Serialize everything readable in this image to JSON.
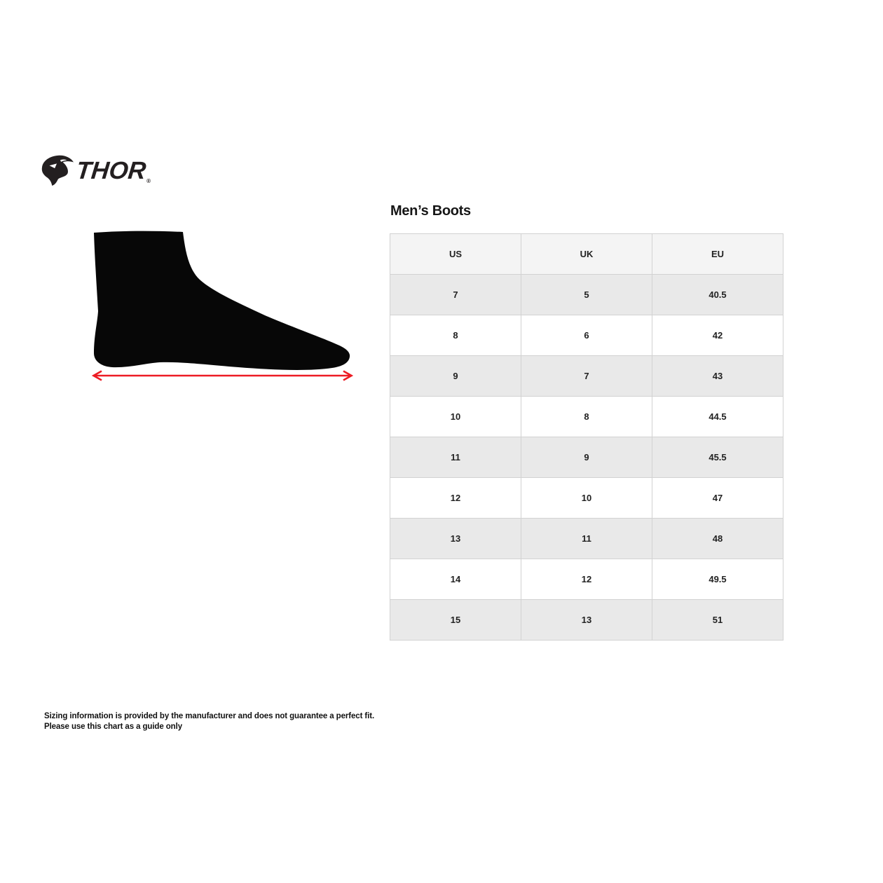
{
  "brand": {
    "name": "THOR",
    "registered_mark": "®"
  },
  "diagram": {
    "description": "foot side silhouette with length measurement arrow",
    "arrow_color": "#ed1c24"
  },
  "size_chart": {
    "title": "Men’s Boots",
    "columns": [
      "US",
      "UK",
      "EU"
    ],
    "rows": [
      [
        "7",
        "5",
        "40.5"
      ],
      [
        "8",
        "6",
        "42"
      ],
      [
        "9",
        "7",
        "43"
      ],
      [
        "10",
        "8",
        "44.5"
      ],
      [
        "11",
        "9",
        "45.5"
      ],
      [
        "12",
        "10",
        "47"
      ],
      [
        "13",
        "11",
        "48"
      ],
      [
        "14",
        "12",
        "49.5"
      ],
      [
        "15",
        "13",
        "51"
      ]
    ]
  },
  "footer": {
    "line1": "Sizing information is provided by the manufacturer and does not guarantee a perfect fit.",
    "line2": "Please use this chart as a guide only"
  },
  "colors": {
    "accent_red": "#ed1c24",
    "header_bg": "#f4f4f4",
    "stripe_bg": "#e9e9e9",
    "border": "#d2d2d2",
    "logo_ink": "#231f20"
  }
}
